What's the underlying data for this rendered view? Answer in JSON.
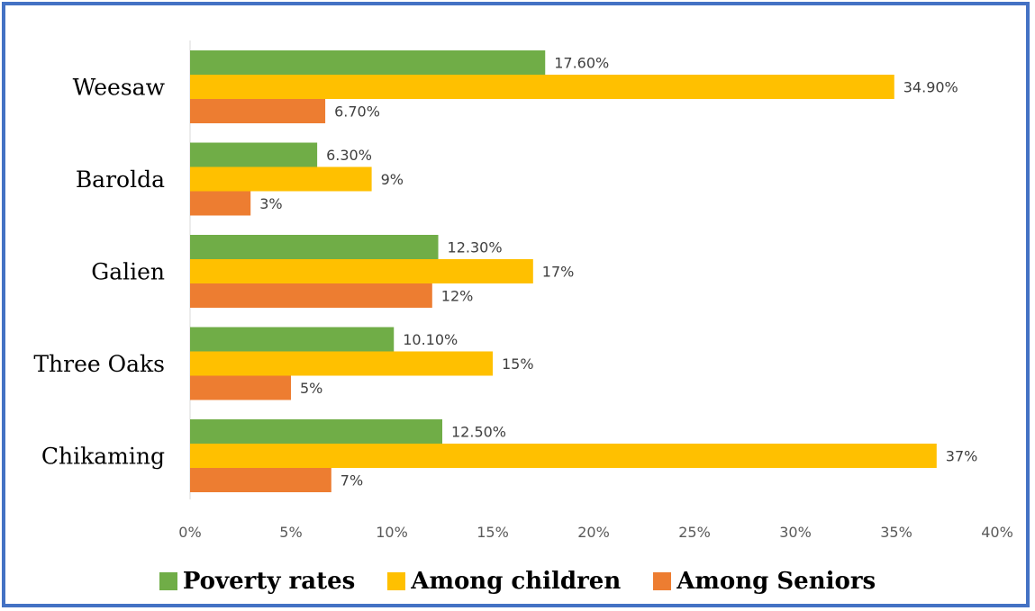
{
  "chart_data": {
    "type": "bar",
    "orientation": "horizontal",
    "categories": [
      "Weesaw",
      "Barolda",
      "Galien",
      "Three Oaks",
      "Chikaming"
    ],
    "series": [
      {
        "name": "Poverty rates",
        "color": "#70AD47",
        "values": [
          17.6,
          6.3,
          12.3,
          10.1,
          12.5
        ],
        "labels": [
          "17.60%",
          "6.30%",
          "12.30%",
          "10.10%",
          "12.50%"
        ]
      },
      {
        "name": "Among children",
        "color": "#FFC000",
        "values": [
          34.9,
          9,
          17,
          15,
          37
        ],
        "labels": [
          "34.90%",
          "9%",
          "17%",
          "15%",
          "37%"
        ]
      },
      {
        "name": "Among Seniors",
        "color": "#ED7D31",
        "values": [
          6.7,
          3,
          12,
          5,
          7
        ],
        "labels": [
          "6.70%",
          "3%",
          "12%",
          "5%",
          "7%"
        ]
      }
    ],
    "xlim": [
      0,
      40
    ],
    "xticks": [
      "0%",
      "5%",
      "10%",
      "15%",
      "20%",
      "25%",
      "30%",
      "35%",
      "40%"
    ],
    "grid": false,
    "legend_position": "bottom",
    "title": "",
    "xlabel": "",
    "ylabel": ""
  },
  "colors": {
    "border": "#4472C4",
    "axis": "#D9D9D9"
  }
}
